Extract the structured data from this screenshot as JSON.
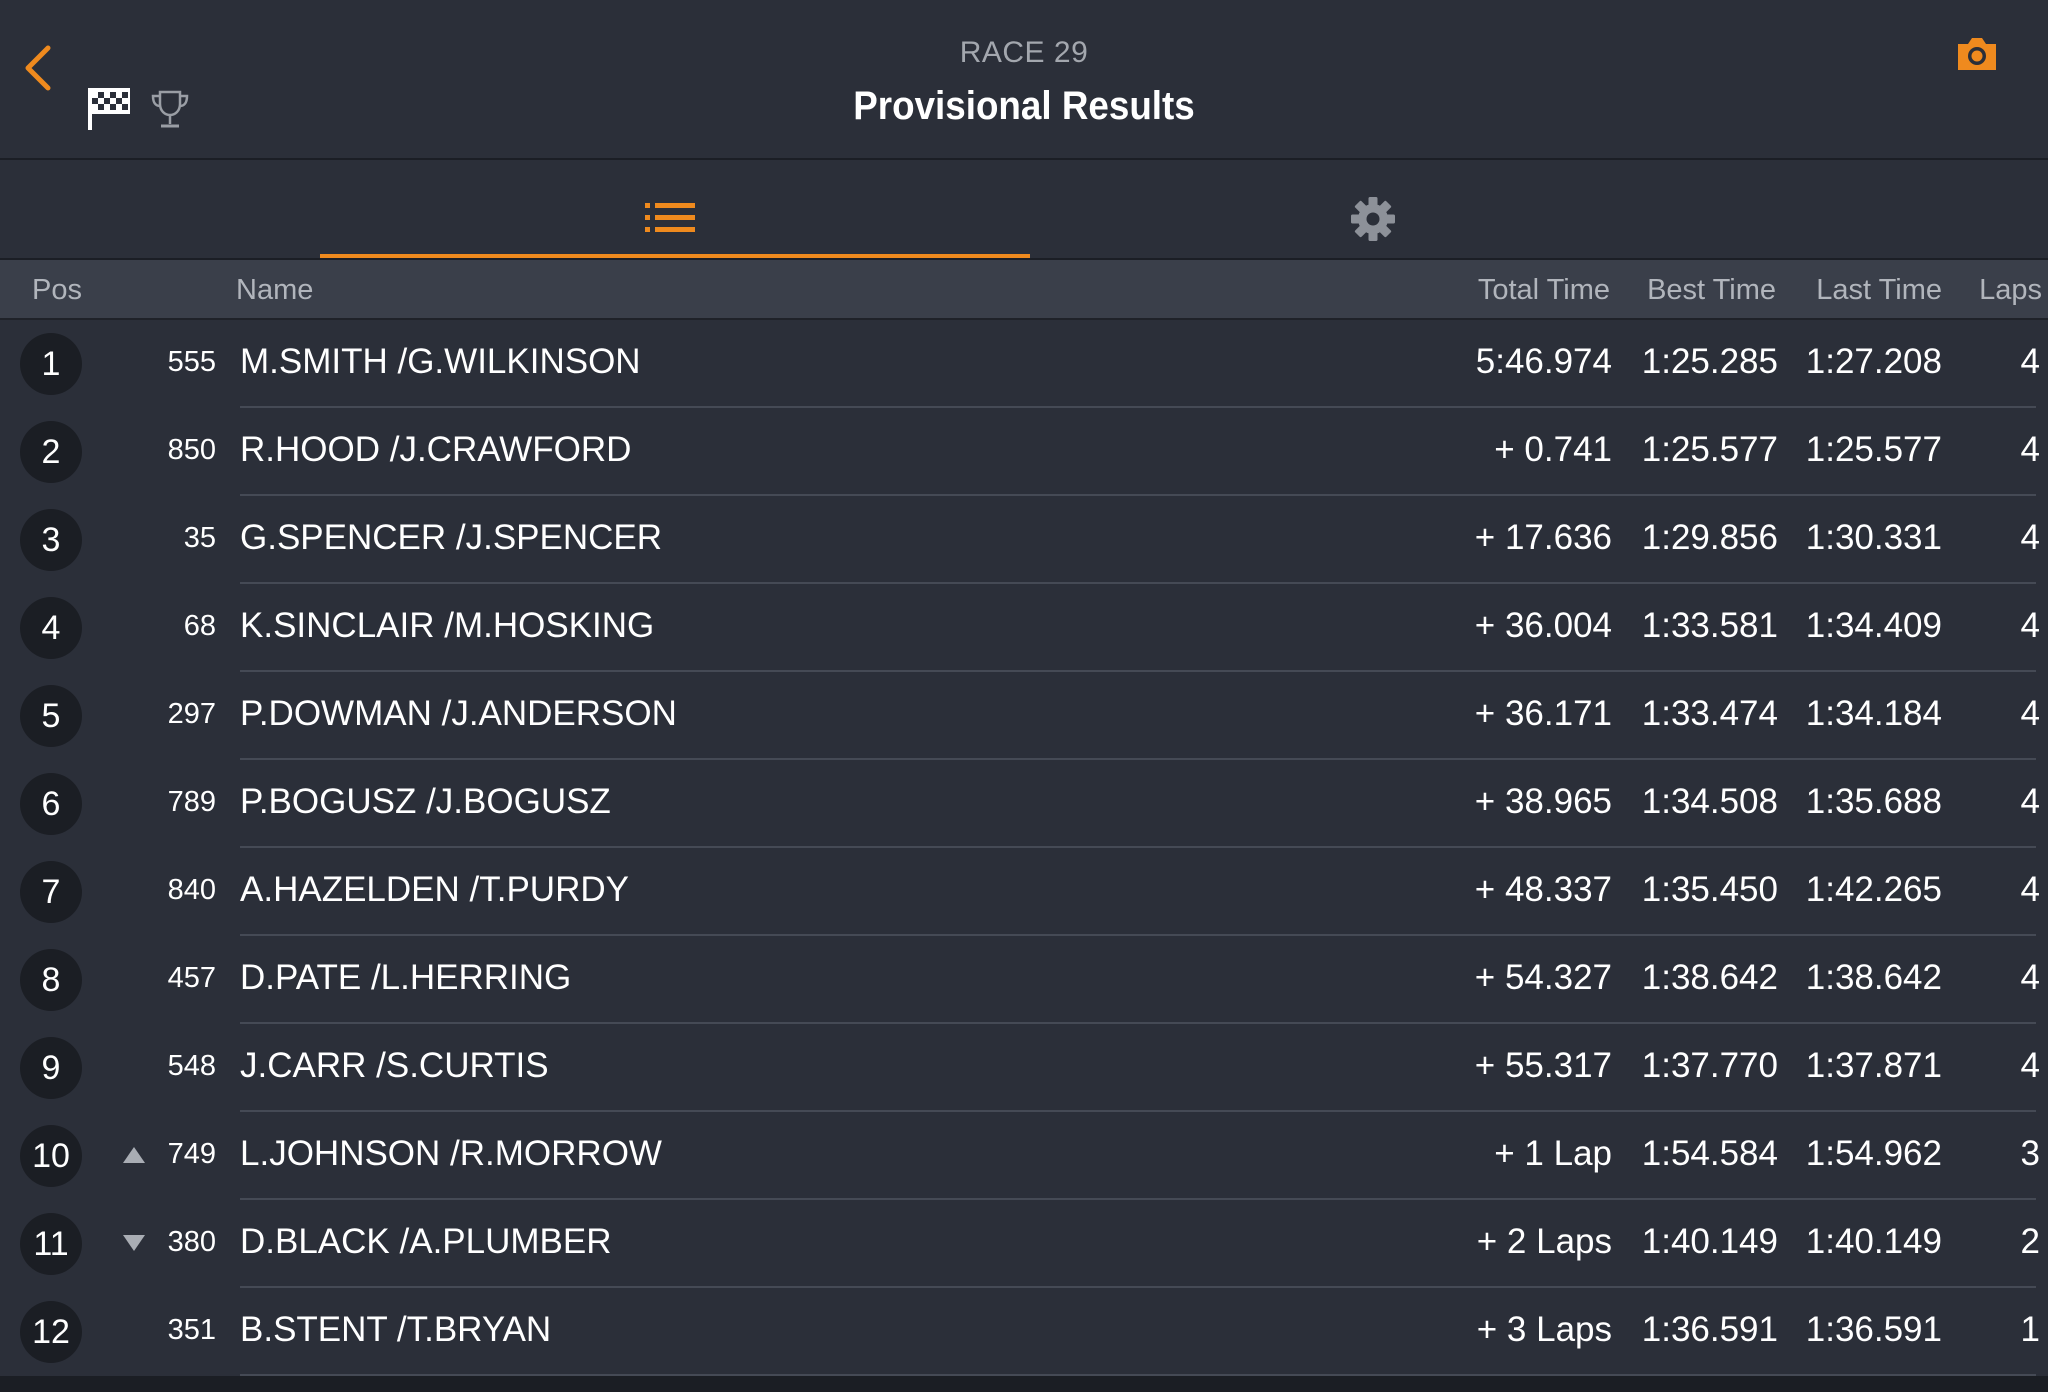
{
  "header": {
    "subtitle": "RACE 29",
    "title": "Provisional Results"
  },
  "accent_color": "#ef8a1e",
  "icons": {
    "back": "chevron-left-icon",
    "flag": "checkered-flag-icon",
    "trophy": "trophy-icon",
    "camera": "camera-icon",
    "list": "list-icon",
    "settings": "gear-icon"
  },
  "tabs": {
    "active": "list"
  },
  "columns": {
    "pos": "Pos",
    "name": "Name",
    "total": "Total Time",
    "best": "Best Time",
    "last": "Last Time",
    "laps": "Laps"
  },
  "results": [
    {
      "pos": "1",
      "num": "555",
      "name": "M.SMITH /G.WILKINSON",
      "total": "5:46.974",
      "best": "1:25.285",
      "last": "1:27.208",
      "laps": "4",
      "trend": ""
    },
    {
      "pos": "2",
      "num": "850",
      "name": "R.HOOD /J.CRAWFORD",
      "total": "+ 0.741",
      "best": "1:25.577",
      "last": "1:25.577",
      "laps": "4",
      "trend": ""
    },
    {
      "pos": "3",
      "num": "35",
      "name": "G.SPENCER /J.SPENCER",
      "total": "+ 17.636",
      "best": "1:29.856",
      "last": "1:30.331",
      "laps": "4",
      "trend": ""
    },
    {
      "pos": "4",
      "num": "68",
      "name": "K.SINCLAIR /M.HOSKING",
      "total": "+ 36.004",
      "best": "1:33.581",
      "last": "1:34.409",
      "laps": "4",
      "trend": ""
    },
    {
      "pos": "5",
      "num": "297",
      "name": "P.DOWMAN /J.ANDERSON",
      "total": "+ 36.171",
      "best": "1:33.474",
      "last": "1:34.184",
      "laps": "4",
      "trend": ""
    },
    {
      "pos": "6",
      "num": "789",
      "name": "P.BOGUSZ /J.BOGUSZ",
      "total": "+ 38.965",
      "best": "1:34.508",
      "last": "1:35.688",
      "laps": "4",
      "trend": ""
    },
    {
      "pos": "7",
      "num": "840",
      "name": "A.HAZELDEN /T.PURDY",
      "total": "+ 48.337",
      "best": "1:35.450",
      "last": "1:42.265",
      "laps": "4",
      "trend": ""
    },
    {
      "pos": "8",
      "num": "457",
      "name": "D.PATE /L.HERRING",
      "total": "+ 54.327",
      "best": "1:38.642",
      "last": "1:38.642",
      "laps": "4",
      "trend": ""
    },
    {
      "pos": "9",
      "num": "548",
      "name": "J.CARR /S.CURTIS",
      "total": "+ 55.317",
      "best": "1:37.770",
      "last": "1:37.871",
      "laps": "4",
      "trend": ""
    },
    {
      "pos": "10",
      "num": "749",
      "name": "L.JOHNSON /R.MORROW",
      "total": "+ 1 Lap",
      "best": "1:54.584",
      "last": "1:54.962",
      "laps": "3",
      "trend": "up"
    },
    {
      "pos": "11",
      "num": "380",
      "name": "D.BLACK /A.PLUMBER",
      "total": "+ 2 Laps",
      "best": "1:40.149",
      "last": "1:40.149",
      "laps": "2",
      "trend": "down"
    },
    {
      "pos": "12",
      "num": "351",
      "name": "B.STENT /T.BRYAN",
      "total": "+ 3 Laps",
      "best": "1:36.591",
      "last": "1:36.591",
      "laps": "1",
      "trend": ""
    }
  ]
}
